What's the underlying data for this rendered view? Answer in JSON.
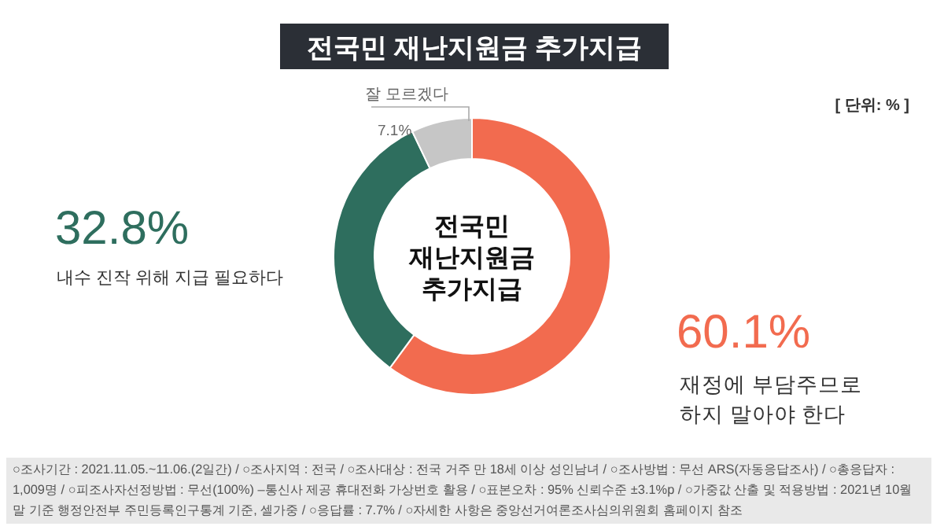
{
  "chart_data": {
    "type": "donut",
    "title": "전국민 재난지원금 추가지급",
    "categories": [
      "재정에 부담주므로 하지 말아야 한다",
      "내수 진작 위해 지급 필요하다",
      "잘 모르겠다"
    ],
    "values": [
      60.1,
      32.8,
      7.1
    ],
    "colors": [
      "#f26b4f",
      "#2e6e5e",
      "#c6c6c6"
    ],
    "value_labels": [
      "60.1%",
      "32.8%",
      "7.1%"
    ],
    "annotations": [
      "전국민\n재난지원금\n추가지급",
      "[ 단위: % ]",
      "○조사기간 : 2021.11.05.~11.06.(2일간) / ○조사지역 : 전국 / ○조사대상 : 전국 거주 만 18세 이상 성인남녀 / ○조사방법 : 무선 ARS(자동응답조사) / ○총응답자 : 1,009명 / ○피조사자선정방법 : 무선(100%) –통신사 제공 휴대전화 가상번호 활용 / ○표본오차 : 95% 신뢰수준 ±3.1%p / ○가중값 산출 및 적용방법 : 2021년 10월 말 기준 행정안전부 주민등록인구통계 기준, 셀가중 / ○응답률 : 7.7% / ○자세한 사항은 중앙선거여론조사심의위원회 홈페이지 참조"
    ]
  }
}
